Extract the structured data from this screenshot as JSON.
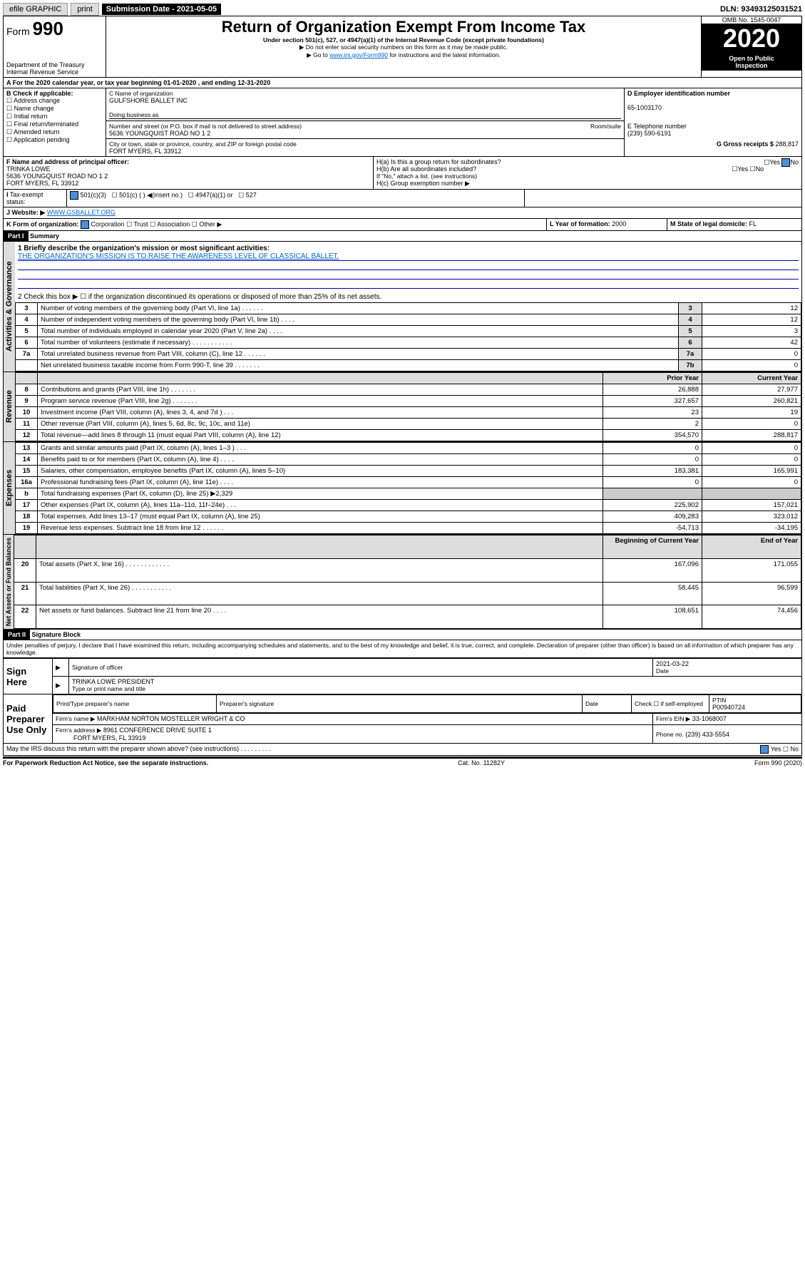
{
  "topbar": {
    "efile": "efile GRAPHIC",
    "print": "print",
    "sub_lbl": "Submission Date - 2021-05-05",
    "dln": "DLN: 93493125031521"
  },
  "header": {
    "form_word": "Form",
    "form_no": "990",
    "dept": "Department of the Treasury",
    "irs": "Internal Revenue Service",
    "title": "Return of Organization Exempt From Income Tax",
    "sub1": "Under section 501(c), 527, or 4947(a)(1) of the Internal Revenue Code (except private foundations)",
    "sub2": "▶ Do not enter social security numbers on this form as it may be made public.",
    "sub3": "▶ Go to www.irs.gov/Form990 for instructions and the latest information.",
    "omb": "OMB No. 1545-0047",
    "year": "2020",
    "open": "Open to Public",
    "insp": "Inspection"
  },
  "a_line": "A For the 2020 calendar year, or tax year beginning 01-01-2020    , and ending 12-31-2020",
  "boxB": {
    "hdr": "B Check if applicable:",
    "items": [
      "Address change",
      "Name change",
      "Initial return",
      "Final return/terminated",
      "Amended return",
      "Application pending"
    ]
  },
  "boxC": {
    "lbl_name": "C Name of organization",
    "name": "GULFSHORE BALLET INC",
    "dba_lbl": "Doing business as",
    "dba": "",
    "addr_lbl": "Number and street (or P.O. box if mail is not delivered to street address)",
    "room_lbl": "Room/suite",
    "addr": "5636 YOUNGQUIST ROAD NO 1 2",
    "city_lbl": "City or town, state or province, country, and ZIP or foreign postal code",
    "city": "FORT MYERS, FL  33912"
  },
  "boxD": {
    "lbl": "D Employer identification number",
    "val": "65-1003170"
  },
  "boxE": {
    "lbl": "E Telephone number",
    "val": "(239) 590-6191"
  },
  "boxG": {
    "lbl": "G Gross receipts $",
    "val": "288,817"
  },
  "boxF": {
    "lbl": "F Name and address of principal officer:",
    "name": "TRINKA LOWE",
    "addr1": "5636 YOUNGQUIST ROAD NO 1 2",
    "addr2": "FORT MYERS, FL  33912"
  },
  "boxH": {
    "a": "H(a)  Is this a group return for subordinates?",
    "b": "H(b)  Are all subordinates included?",
    "note": "If \"No,\" attach a list. (see instructions)",
    "c": "H(c)  Group exemption number ▶",
    "yes": "Yes",
    "no": "No"
  },
  "boxI": {
    "lbl": "Tax-exempt status:",
    "c3": "501(c)(3)",
    "c": "501(c) (  ) ◀(insert no.)",
    "a1": "4947(a)(1) or",
    "s527": "527"
  },
  "boxJ": {
    "lbl": "Website: ▶",
    "val": "WWW.GSBALLET.ORG"
  },
  "boxK": {
    "lbl": "K Form of organization:",
    "corp": "Corporation",
    "trust": "Trust",
    "assoc": "Association",
    "other": "Other ▶"
  },
  "boxL": {
    "lbl": "L Year of formation:",
    "val": "2000"
  },
  "boxM": {
    "lbl": "M State of legal domicile:",
    "val": "FL"
  },
  "part1": {
    "bar": "Part I",
    "title": "Summary",
    "l1": "1 Briefly describe the organization's mission or most significant activities:",
    "l1v": "THE ORGANIZATION'S MISSION IS TO RAISE THE AWARENESS LEVEL OF CLASSICAL BALLET.",
    "l2": "2 Check this box ▶ ☐  if the organization discontinued its operations or disposed of more than 25% of its net assets.",
    "sidebars": {
      "ag": "Activities & Governance",
      "rev": "Revenue",
      "exp": "Expenses",
      "na": "Net Assets or Fund Balances"
    },
    "hdr_prior": "Prior Year",
    "hdr_curr": "Current Year",
    "hdr_beg": "Beginning of Current Year",
    "hdr_end": "End of Year",
    "lines_gov": [
      {
        "n": "3",
        "t": "Number of voting members of the governing body (Part VI, line 1a)  .    .    .    .    .    .",
        "b": "3",
        "v": "12"
      },
      {
        "n": "4",
        "t": "Number of independent voting members of the governing body (Part VI, line 1b)  .   .   .   .",
        "b": "4",
        "v": "12"
      },
      {
        "n": "5",
        "t": "Total number of individuals employed in calendar year 2020 (Part V, line 2a)  .   .   .   .",
        "b": "5",
        "v": "3"
      },
      {
        "n": "6",
        "t": "Total number of volunteers (estimate if necessary)  .   .   .   .   .   .   .   .   .   .   .",
        "b": "6",
        "v": "42"
      },
      {
        "n": "7a",
        "t": "Total unrelated business revenue from Part VIII, column (C), line 12  .   .   .   .   .   .",
        "b": "7a",
        "v": "0"
      },
      {
        "n": "",
        "t": "Net unrelated business taxable income from Form 990-T, line 39  .   .   .   .   .   .   .",
        "b": "7b",
        "v": "0"
      }
    ],
    "lines_rev": [
      {
        "n": "8",
        "t": "Contributions and grants (Part VIII, line 1h)  .   .   .   .   .   .   .",
        "p": "26,888",
        "c": "27,977"
      },
      {
        "n": "9",
        "t": "Program service revenue (Part VIII, line 2g)  .   .   .   .   .   .   .",
        "p": "327,657",
        "c": "260,821"
      },
      {
        "n": "10",
        "t": "Investment income (Part VIII, column (A), lines 3, 4, and 7d )  .   .   .",
        "p": "23",
        "c": "19"
      },
      {
        "n": "11",
        "t": "Other revenue (Part VIII, column (A), lines 5, 6d, 8c, 9c, 10c, and 11e)",
        "p": "2",
        "c": "0"
      },
      {
        "n": "12",
        "t": "Total revenue—add lines 8 through 11 (must equal Part VIII, column (A), line 12)",
        "p": "354,570",
        "c": "288,817"
      }
    ],
    "lines_exp": [
      {
        "n": "13",
        "t": "Grants and similar amounts paid (Part IX, column (A), lines 1–3 )  .   .   .",
        "p": "0",
        "c": "0"
      },
      {
        "n": "14",
        "t": "Benefits paid to or for members (Part IX, column (A), line 4)  .   .   .   .",
        "p": "0",
        "c": "0"
      },
      {
        "n": "15",
        "t": "Salaries, other compensation, employee benefits (Part IX, column (A), lines 5–10)",
        "p": "183,381",
        "c": "165,991"
      },
      {
        "n": "16a",
        "t": "Professional fundraising fees (Part IX, column (A), line 11e)  .   .   .   .",
        "p": "0",
        "c": "0"
      },
      {
        "n": "b",
        "t": "Total fundraising expenses (Part IX, column (D), line 25) ▶2,329",
        "p": "",
        "c": ""
      },
      {
        "n": "17",
        "t": "Other expenses (Part IX, column (A), lines 11a–11d, 11f–24e)  .   .   .",
        "p": "225,902",
        "c": "157,021"
      },
      {
        "n": "18",
        "t": "Total expenses. Add lines 13–17 (must equal Part IX, column (A), line 25)",
        "p": "409,283",
        "c": "323,012"
      },
      {
        "n": "19",
        "t": "Revenue less expenses. Subtract line 18 from line 12  .   .   .   .   .   .",
        "p": "-54,713",
        "c": "-34,195"
      }
    ],
    "lines_na": [
      {
        "n": "20",
        "t": "Total assets (Part X, line 16)  .   .   .   .   .   .   .   .   .   .   .   .",
        "p": "167,096",
        "c": "171,055"
      },
      {
        "n": "21",
        "t": "Total liabilities (Part X, line 26)  .   .   .   .   .   .   .   .   .   .   .",
        "p": "58,445",
        "c": "96,599"
      },
      {
        "n": "22",
        "t": "Net assets or fund balances. Subtract line 21 from line 20  .   .   .   .",
        "p": "108,651",
        "c": "74,456"
      }
    ]
  },
  "part2": {
    "bar": "Part II",
    "title": "Signature Block",
    "decl": "Under penalties of perjury, I declare that I have examined this return, including accompanying schedules and statements, and to the best of my knowledge and belief, it is true, correct, and complete. Declaration of preparer (other than officer) is based on all information of which preparer has any knowledge.",
    "sign_here": "Sign Here",
    "sig_off": "Signature of officer",
    "sig_date": "2021-03-22",
    "date_lbl": "Date",
    "name_title": "TRINKA LOWE  PRESIDENT",
    "name_lbl": "Type or print name and title",
    "paid": "Paid Preparer Use Only",
    "pp_name_lbl": "Print/Type preparer's name",
    "pp_sig_lbl": "Preparer's signature",
    "pp_date_lbl": "Date",
    "pp_check": "Check ☐ if self-employed",
    "ptin_lbl": "PTIN",
    "ptin": "P00940724",
    "firm_lbl": "Firm's name    ▶",
    "firm": "MARKHAM NORTON MOSTELLER WRIGHT & CO",
    "ein_lbl": "Firm's EIN ▶",
    "ein": "33-1068007",
    "faddr_lbl": "Firm's address ▶",
    "faddr1": "8961 CONFERENCE DRIVE SUITE 1",
    "faddr2": "FORT MYERS, FL  33919",
    "phone_lbl": "Phone no.",
    "phone": "(239) 433-5554",
    "discuss": "May the IRS discuss this return with the preparer shown above? (see instructions)  .   .   .   .   .   .   .   .   .",
    "pra": "For Paperwork Reduction Act Notice, see the separate instructions.",
    "cat": "Cat. No. 11282Y",
    "formno": "Form 990 (2020)"
  }
}
